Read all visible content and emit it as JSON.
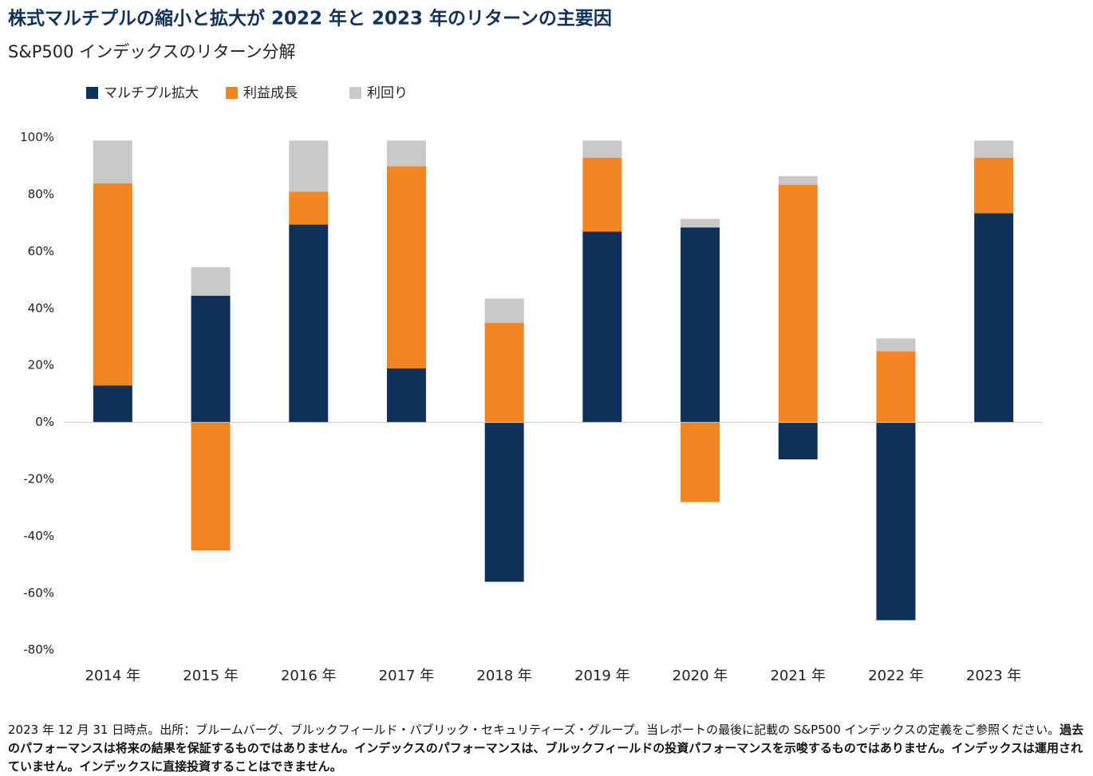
{
  "chart_data": {
    "type": "stacked_bar",
    "title": "株式マルチプルの縮小と拡大が 2022 年と 2023 年のリターンの主要因",
    "subtitle": "S&P500 インデックスのリターン分解",
    "categories": [
      "2014 年",
      "2015 年",
      "2016 年",
      "2017 年",
      "2018 年",
      "2019 年",
      "2020 年",
      "2021 年",
      "2022 年",
      "2023 年"
    ],
    "series": [
      {
        "name": "マルチプル拡大",
        "color": "#10325a",
        "values": [
          13,
          44.5,
          69.5,
          19,
          -56,
          67,
          68.5,
          -13,
          -69.5,
          73.5
        ]
      },
      {
        "name": "利益成長",
        "color": "#f28522",
        "values": [
          71,
          -45,
          11.5,
          71,
          35,
          26,
          -28,
          83.5,
          25,
          19.5
        ]
      },
      {
        "name": "利回り",
        "color": "#c8c8c8",
        "values": [
          15,
          10,
          18,
          9,
          8.5,
          6,
          3,
          3,
          4.5,
          6
        ]
      }
    ],
    "ylim": [
      -85,
      103
    ],
    "yticks": [
      {
        "value": 100,
        "label": "100%"
      },
      {
        "value": 80,
        "label": "80%"
      },
      {
        "value": 60,
        "label": "60%"
      },
      {
        "value": 40,
        "label": "40%"
      },
      {
        "value": 20,
        "label": "20%"
      },
      {
        "value": 0,
        "label": "0%"
      },
      {
        "value": -20,
        "label": "-20%"
      },
      {
        "value": -40,
        "label": "-40%"
      },
      {
        "value": -60,
        "label": "-60%"
      },
      {
        "value": -80,
        "label": "-80%"
      }
    ],
    "grid": false,
    "legend": "top"
  },
  "footnote": {
    "normal": "2023 年 12 月 31 日時点。出所：ブルームバーグ、ブルックフィールド・パブリック・セキュリティーズ・グループ。当レポートの最後に記載の S&P500 インデックスの定義をご参照ください。",
    "bold": "過去のパフォーマンスは将来の結果を保証するものではありません。インデックスのパフォーマンスは、ブルックフィールドの投資パフォーマンスを示唆するものではありません。インデックスは運用されていません。インデックスに直接投資することはできません。"
  }
}
